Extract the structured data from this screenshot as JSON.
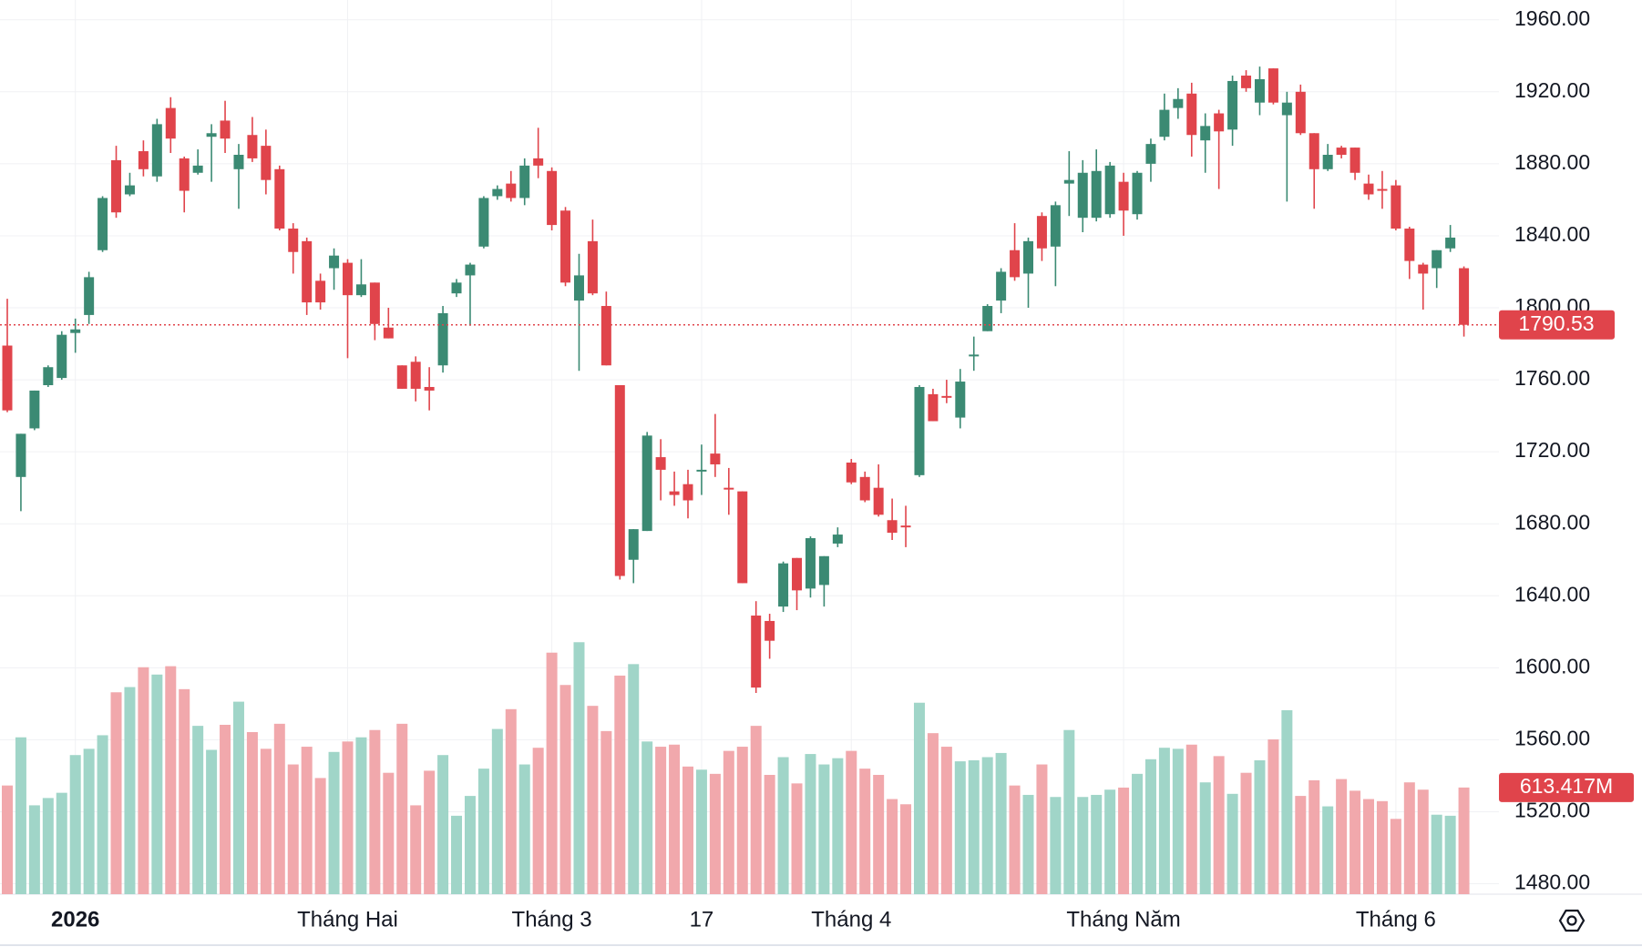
{
  "chart_data": {
    "type": "candlestick",
    "categories": [
      null,
      null,
      null,
      null,
      null,
      "2026",
      null,
      null,
      null,
      null,
      null,
      null,
      null,
      null,
      null,
      null,
      null,
      null,
      null,
      null,
      null,
      null,
      null,
      null,
      null,
      "Tháng Hai",
      null,
      null,
      null,
      null,
      null,
      null,
      null,
      null,
      null,
      null,
      null,
      null,
      null,
      null,
      "Tháng 3",
      null,
      null,
      null,
      null,
      null,
      null,
      null,
      null,
      null,
      null,
      "17",
      null,
      null,
      null,
      null,
      null,
      null,
      null,
      null,
      null,
      null,
      "Tháng 4",
      null,
      null,
      null,
      null,
      null,
      null,
      null,
      null,
      null,
      null,
      null,
      null,
      null,
      null,
      null,
      null,
      null,
      null,
      null,
      "Tháng Năm",
      null,
      null,
      null,
      null,
      null,
      null,
      null,
      null,
      null,
      null,
      null,
      null,
      null,
      null,
      null,
      null,
      null,
      null,
      null,
      "Tháng 6",
      null,
      null,
      null,
      null,
      null
    ],
    "open": [
      1779,
      1706,
      1733,
      1757,
      1761,
      1786,
      1796,
      1832,
      1882,
      1863,
      1887,
      1873,
      1911,
      1883,
      1875,
      1895,
      1904,
      1877,
      1896,
      1890,
      1877,
      1844,
      1837,
      1815,
      1822,
      1825,
      1807,
      1814,
      1789,
      1768,
      1770,
      1756,
      1768,
      1808,
      1818,
      1834,
      1862,
      1869,
      1861,
      1883,
      1876,
      1854,
      1804,
      1837,
      1801,
      1757,
      1660,
      1676,
      1717,
      1698,
      1702,
      1709,
      1719,
      1700,
      1698,
      1629,
      1626,
      1634,
      1661,
      1644,
      1646,
      1669,
      1714,
      1706,
      1700,
      1682,
      1679,
      1707,
      1752,
      1751,
      1739,
      1773,
      1787,
      1804,
      1832,
      1819,
      1851,
      1834,
      1869,
      1850,
      1850,
      1852,
      1870,
      1852,
      1880,
      1895,
      1911,
      1919,
      1893,
      1908,
      1899,
      1929,
      1914,
      1933,
      1907,
      1920,
      1897,
      1877,
      1889,
      1889,
      1869,
      1866,
      1868,
      1844,
      1824,
      1822,
      1833,
      1822
    ],
    "high": [
      1805,
      1730,
      1754,
      1768,
      1787,
      1794,
      1820,
      1862,
      1890,
      1875,
      1893,
      1905,
      1917,
      1884,
      1888,
      1902,
      1915,
      1891,
      1906,
      1899,
      1879,
      1847,
      1839,
      1819,
      1833,
      1827,
      1827,
      1814,
      1800,
      1768,
      1773,
      1767,
      1801,
      1816,
      1825,
      1862,
      1868,
      1876,
      1883,
      1900,
      1878,
      1856,
      1830,
      1849,
      1809,
      1757,
      1677,
      1731,
      1727,
      1709,
      1710,
      1724,
      1741,
      1711,
      1698,
      1637,
      1630,
      1659,
      1661,
      1673,
      1662,
      1678,
      1716,
      1709,
      1713,
      1694,
      1690,
      1757,
      1755,
      1760,
      1766,
      1784,
      1802,
      1822,
      1847,
      1839,
      1853,
      1859,
      1887,
      1882,
      1888,
      1881,
      1875,
      1876,
      1894,
      1919,
      1922,
      1925,
      1908,
      1910,
      1929,
      1932,
      1934,
      1933,
      1920,
      1924,
      1897,
      1891,
      1890,
      1889,
      1874,
      1876,
      1871,
      1845,
      1825,
      1832,
      1846,
      1823
    ],
    "low": [
      1742,
      1687,
      1732,
      1756,
      1760,
      1775,
      1791,
      1831,
      1850,
      1862,
      1873,
      1870,
      1886,
      1853,
      1874,
      1870,
      1886,
      1855,
      1881,
      1863,
      1843,
      1819,
      1796,
      1799,
      1810,
      1772,
      1806,
      1782,
      1783,
      1755,
      1748,
      1743,
      1764,
      1806,
      1790,
      1833,
      1860,
      1859,
      1857,
      1872,
      1843,
      1812,
      1765,
      1807,
      1768,
      1649,
      1647,
      1676,
      1693,
      1690,
      1683,
      1696,
      1706,
      1685,
      1647,
      1586,
      1605,
      1631,
      1632,
      1639,
      1634,
      1667,
      1702,
      1692,
      1684,
      1671,
      1667,
      1706,
      1737,
      1747,
      1733,
      1765,
      1787,
      1797,
      1815,
      1800,
      1826,
      1812,
      1851,
      1842,
      1848,
      1850,
      1840,
      1849,
      1870,
      1893,
      1905,
      1884,
      1875,
      1866,
      1890,
      1920,
      1907,
      1913,
      1859,
      1896,
      1855,
      1876,
      1883,
      1871,
      1860,
      1855,
      1843,
      1816,
      1799,
      1811,
      1831,
      1784
    ],
    "close": [
      1743,
      1730,
      1754,
      1767,
      1785,
      1788,
      1817,
      1861,
      1853,
      1868,
      1877,
      1902,
      1894,
      1865,
      1879,
      1897,
      1894,
      1885,
      1883,
      1871,
      1844,
      1831,
      1803,
      1803,
      1829,
      1807,
      1813,
      1791,
      1783,
      1755,
      1755,
      1754,
      1797,
      1814,
      1824,
      1861,
      1866,
      1861,
      1879,
      1879,
      1846,
      1814,
      1818,
      1808,
      1768,
      1651,
      1677,
      1729,
      1710,
      1696,
      1693,
      1710,
      1713,
      1699,
      1647,
      1589,
      1615,
      1658,
      1643,
      1672,
      1662,
      1674,
      1703,
      1693,
      1685,
      1675,
      1678,
      1756,
      1737,
      1750,
      1759,
      1774,
      1801,
      1820,
      1817,
      1837,
      1833,
      1857,
      1871,
      1875,
      1876,
      1879,
      1854,
      1875,
      1891,
      1910,
      1916,
      1896,
      1901,
      1898,
      1926,
      1922,
      1927,
      1914,
      1914,
      1897,
      1877,
      1885,
      1885,
      1875,
      1863,
      1865,
      1844,
      1826,
      1819,
      1832,
      1839,
      1790.53
    ],
    "up_color": "#3b8a73",
    "down_color": "#e0444b",
    "ylim": [
      1474.2,
      1971
    ],
    "yticks": [
      {
        "value": 1480,
        "label": "1480.00"
      },
      {
        "value": 1520,
        "label": "1520.00"
      },
      {
        "value": 1560,
        "label": "1560.00"
      },
      {
        "value": 1600,
        "label": "1600.00"
      },
      {
        "value": 1640,
        "label": "1640.00"
      },
      {
        "value": 1680,
        "label": "1680.00"
      },
      {
        "value": 1720,
        "label": "1720.00"
      },
      {
        "value": 1760,
        "label": "1760.00"
      },
      {
        "value": 1800,
        "label": "1800.00"
      },
      {
        "value": 1840,
        "label": "1840.00"
      },
      {
        "value": 1880,
        "label": "1880.00"
      },
      {
        "value": 1920,
        "label": "1920.00"
      },
      {
        "value": 1960,
        "label": "1960.00"
      }
    ],
    "grid": true,
    "volume": {
      "values": [
        625,
        902,
        511,
        553,
        583,
        800,
        836,
        914,
        1161,
        1191,
        1305,
        1263,
        1311,
        1179,
        968,
        830,
        974,
        1107,
        932,
        836,
        980,
        746,
        848,
        668,
        818,
        878,
        902,
        944,
        698,
        980,
        511,
        710,
        800,
        451,
        565,
        722,
        950,
        1064,
        746,
        842,
        1389,
        1203,
        1449,
        1083,
        938,
        1257,
        1323,
        878,
        848,
        860,
        734,
        716,
        692,
        824,
        848,
        968,
        686,
        788,
        637,
        806,
        746,
        782,
        824,
        722,
        686,
        547,
        517,
        1101,
        926,
        848,
        764,
        770,
        788,
        812,
        625,
        571,
        746,
        559,
        944,
        559,
        571,
        601,
        613,
        692,
        776,
        842,
        836,
        860,
        643,
        794,
        577,
        698,
        770,
        890,
        1058,
        565,
        655,
        505,
        662,
        595,
        547,
        535,
        433,
        643,
        601,
        457,
        451,
        613.417
      ],
      "last_value_label": "613.417M",
      "ylim": [
        0,
        5142
      ],
      "up_color": "#a0d5c8",
      "down_color": "#f1a8ac"
    }
  }
}
